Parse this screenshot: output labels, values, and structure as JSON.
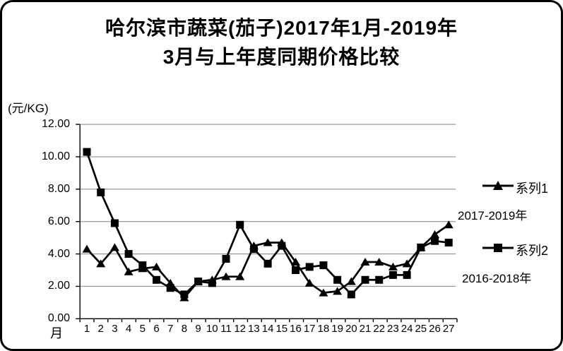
{
  "frame": {
    "background": "#ffffff",
    "border_color": "#000000"
  },
  "chart_data": {
    "type": "line",
    "title_line1": "哈尔滨市蔬菜(茄子)2017年1月-2019年",
    "title_line2": "3月与上年度同期价格比较",
    "y_axis": {
      "unit_label": "(元/KG)",
      "min": 0,
      "max": 12,
      "step": 2,
      "tick_labels": [
        "12.00",
        "10.00",
        "8.00",
        "6.00",
        "4.00",
        "2.00",
        "0.00"
      ]
    },
    "x_axis": {
      "label": "月",
      "categories": [
        "1",
        "2",
        "3",
        "4",
        "5",
        "6",
        "7",
        "8",
        "9",
        "10",
        "11",
        "12",
        "13",
        "14",
        "15",
        "16",
        "17",
        "18",
        "19",
        "20",
        "21",
        "22",
        "23",
        "24",
        "25",
        "26",
        "27"
      ]
    },
    "series": [
      {
        "name": "系列1",
        "caption": "2017-2019年",
        "marker": "triangle",
        "color": "#000000",
        "values": [
          4.3,
          3.4,
          4.4,
          2.9,
          3.1,
          3.2,
          2.2,
          1.3,
          2.3,
          2.4,
          2.6,
          2.6,
          4.5,
          4.7,
          4.7,
          3.5,
          2.2,
          1.6,
          1.7,
          2.3,
          3.5,
          3.5,
          3.2,
          3.4,
          4.4,
          5.2,
          5.8
        ]
      },
      {
        "name": "系列2",
        "caption": "2016-2018年",
        "marker": "square",
        "color": "#000000",
        "values": [
          10.3,
          7.8,
          5.9,
          4.0,
          3.3,
          2.4,
          1.9,
          1.5,
          2.3,
          2.2,
          3.7,
          5.8,
          4.3,
          3.4,
          4.5,
          3.0,
          3.2,
          3.3,
          2.4,
          1.5,
          2.4,
          2.4,
          2.7,
          2.7,
          4.4,
          4.8,
          4.7
        ]
      }
    ],
    "grid": true,
    "gridline_color": "#808080",
    "axis_color": "#000000",
    "legend_position": "right"
  }
}
